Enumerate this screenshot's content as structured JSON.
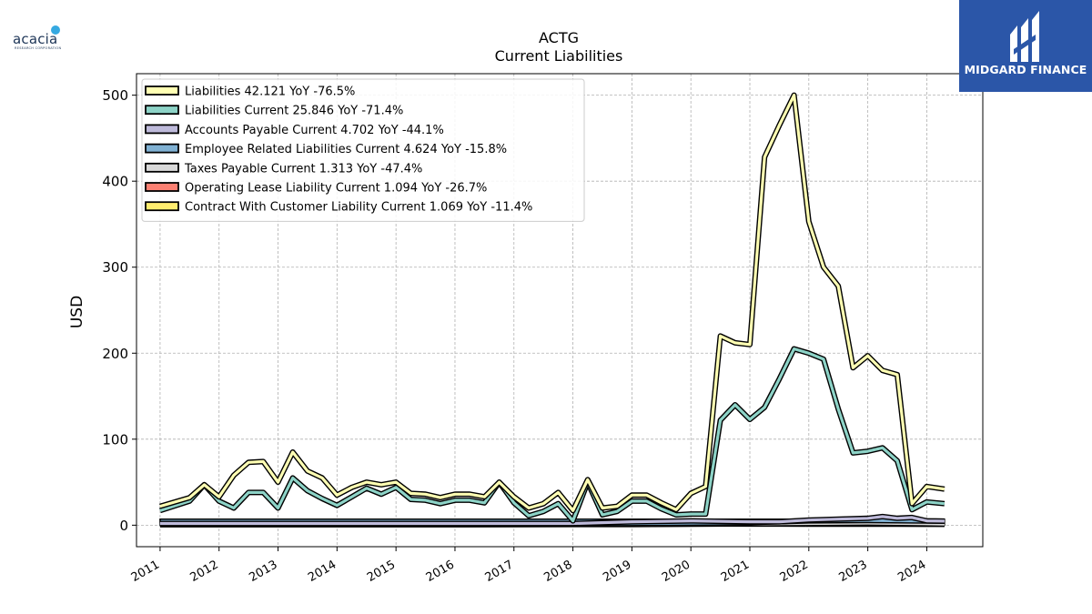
{
  "logos": {
    "left": {
      "text": "acacia",
      "subtext": "RESEARCH CORPORATION"
    },
    "right": {
      "text": "MIDGARD FINANCE"
    }
  },
  "chart_data": {
    "type": "line",
    "title": "ACTG",
    "subtitle": "Current  Liabilities",
    "ylabel": "USD",
    "xlabel": "",
    "xlim": [
      2010.6,
      2024.95
    ],
    "ylim": [
      -25,
      525
    ],
    "yticks": [
      0,
      100,
      200,
      300,
      400,
      500
    ],
    "xticks": [
      2011,
      2012,
      2013,
      2014,
      2015,
      2016,
      2017,
      2018,
      2019,
      2020,
      2021,
      2022,
      2023,
      2024
    ],
    "grid": true,
    "legend_position": "upper-left",
    "series": [
      {
        "name": "Liabilities  42.121 YoY -76.5%",
        "color": "#ffffb3",
        "points": [
          [
            2011.0,
            22
          ],
          [
            2011.5,
            32
          ],
          [
            2011.75,
            47
          ],
          [
            2012.0,
            33
          ],
          [
            2012.25,
            58
          ],
          [
            2012.5,
            73
          ],
          [
            2012.75,
            74
          ],
          [
            2013.0,
            50
          ],
          [
            2013.25,
            85
          ],
          [
            2013.5,
            63
          ],
          [
            2013.75,
            55
          ],
          [
            2014.0,
            35
          ],
          [
            2014.25,
            44
          ],
          [
            2014.5,
            50
          ],
          [
            2014.75,
            47
          ],
          [
            2015.0,
            50
          ],
          [
            2015.25,
            37
          ],
          [
            2015.5,
            36
          ],
          [
            2015.75,
            32
          ],
          [
            2016.0,
            36
          ],
          [
            2016.25,
            36
          ],
          [
            2016.5,
            33
          ],
          [
            2016.75,
            50
          ],
          [
            2017.0,
            33
          ],
          [
            2017.25,
            20
          ],
          [
            2017.5,
            25
          ],
          [
            2017.75,
            38
          ],
          [
            2018.0,
            17
          ],
          [
            2018.25,
            53
          ],
          [
            2018.5,
            20
          ],
          [
            2018.75,
            22
          ],
          [
            2019.0,
            35
          ],
          [
            2019.25,
            35
          ],
          [
            2019.5,
            26
          ],
          [
            2019.75,
            18
          ],
          [
            2020.0,
            37
          ],
          [
            2020.25,
            45
          ],
          [
            2020.5,
            220
          ],
          [
            2020.75,
            212
          ],
          [
            2021.0,
            210
          ],
          [
            2021.25,
            428
          ],
          [
            2021.5,
            465
          ],
          [
            2021.75,
            500
          ],
          [
            2022.0,
            353
          ],
          [
            2022.25,
            300
          ],
          [
            2022.5,
            278
          ],
          [
            2022.75,
            183
          ],
          [
            2023.0,
            197
          ],
          [
            2023.25,
            180
          ],
          [
            2023.5,
            175
          ],
          [
            2023.75,
            25
          ],
          [
            2024.0,
            45
          ],
          [
            2024.3,
            42
          ]
        ]
      },
      {
        "name": "Liabilities Current  25.846 YoY -71.4%",
        "color": "#8dd3c7",
        "points": [
          [
            2011.0,
            17
          ],
          [
            2011.5,
            28
          ],
          [
            2011.75,
            47
          ],
          [
            2012.0,
            28
          ],
          [
            2012.25,
            20
          ],
          [
            2012.5,
            38
          ],
          [
            2012.75,
            38
          ],
          [
            2013.0,
            20
          ],
          [
            2013.25,
            55
          ],
          [
            2013.5,
            40
          ],
          [
            2013.75,
            31
          ],
          [
            2014.0,
            23
          ],
          [
            2014.25,
            33
          ],
          [
            2014.5,
            43
          ],
          [
            2014.75,
            36
          ],
          [
            2015.0,
            44
          ],
          [
            2015.25,
            30
          ],
          [
            2015.5,
            29
          ],
          [
            2015.75,
            25
          ],
          [
            2016.0,
            29
          ],
          [
            2016.25,
            29
          ],
          [
            2016.5,
            26
          ],
          [
            2016.75,
            50
          ],
          [
            2017.0,
            26
          ],
          [
            2017.25,
            11
          ],
          [
            2017.5,
            16
          ],
          [
            2017.75,
            25
          ],
          [
            2018.0,
            5
          ],
          [
            2018.25,
            50
          ],
          [
            2018.5,
            12
          ],
          [
            2018.75,
            16
          ],
          [
            2019.0,
            28
          ],
          [
            2019.25,
            28
          ],
          [
            2019.5,
            19
          ],
          [
            2019.75,
            12
          ],
          [
            2020.0,
            13
          ],
          [
            2020.25,
            13
          ],
          [
            2020.5,
            122
          ],
          [
            2020.75,
            140
          ],
          [
            2021.0,
            123
          ],
          [
            2021.25,
            137
          ],
          [
            2021.5,
            170
          ],
          [
            2021.75,
            205
          ],
          [
            2022.0,
            200
          ],
          [
            2022.25,
            193
          ],
          [
            2022.5,
            135
          ],
          [
            2022.75,
            84
          ],
          [
            2023.0,
            86
          ],
          [
            2023.25,
            90
          ],
          [
            2023.5,
            75
          ],
          [
            2023.75,
            18
          ],
          [
            2024.0,
            27
          ],
          [
            2024.3,
            25
          ]
        ]
      },
      {
        "name": "Accounts Payable Current  4.702 YoY -44.1%",
        "color": "#bebada",
        "points": [
          [
            2011.0,
            2
          ],
          [
            2012.0,
            2
          ],
          [
            2013.0,
            2
          ],
          [
            2014.0,
            2
          ],
          [
            2015.0,
            2
          ],
          [
            2016.0,
            2
          ],
          [
            2017.0,
            2
          ],
          [
            2018.0,
            2
          ],
          [
            2019.0,
            4
          ],
          [
            2020.0,
            5
          ],
          [
            2021.0,
            4
          ],
          [
            2021.5,
            4
          ],
          [
            2022.0,
            6
          ],
          [
            2022.5,
            7
          ],
          [
            2023.0,
            8
          ],
          [
            2023.25,
            10
          ],
          [
            2023.5,
            8
          ],
          [
            2023.75,
            9
          ],
          [
            2024.0,
            5
          ],
          [
            2024.3,
            4.7
          ]
        ]
      },
      {
        "name": "Employee Related Liabilities Current  4.624 YoY -15.8%",
        "color": "#80b1d3",
        "points": [
          [
            2011.0,
            1
          ],
          [
            2013.0,
            1.5
          ],
          [
            2015.0,
            1
          ],
          [
            2017.0,
            1.5
          ],
          [
            2019.0,
            2
          ],
          [
            2021.0,
            3
          ],
          [
            2022.0,
            5
          ],
          [
            2023.0,
            5.5
          ],
          [
            2024.3,
            4.6
          ]
        ]
      },
      {
        "name": "Taxes Payable Current  1.313 YoY -47.4%",
        "color": "#d9d9d9",
        "points": [
          [
            2011.0,
            0.5
          ],
          [
            2015.0,
            0.5
          ],
          [
            2019.0,
            0.8
          ],
          [
            2022.0,
            2
          ],
          [
            2023.0,
            2.5
          ],
          [
            2024.3,
            1.3
          ]
        ]
      },
      {
        "name": "Operating Lease Liability Current  1.094 YoY -26.7%",
        "color": "#fb8072",
        "points": [
          [
            2018.95,
            1.2
          ],
          [
            2019.5,
            1.3
          ],
          [
            2020.0,
            1.4
          ],
          [
            2020.5,
            1.4
          ],
          [
            2021.0,
            1.3
          ],
          [
            2021.5,
            1.3
          ],
          [
            2021.95,
            1.2
          ]
        ]
      },
      {
        "name": "Contract With Customer Liability Current  1.069 YoY -11.4%",
        "color": "#ffed6f",
        "points": [
          [
            2021.95,
            1.1
          ],
          [
            2022.5,
            1.2
          ],
          [
            2023.0,
            1.2
          ],
          [
            2023.5,
            1.1
          ],
          [
            2024.3,
            1.07
          ]
        ]
      }
    ],
    "bands": [
      {
        "series": "Employee Related Liabilities Current  4.624 YoY -15.8%",
        "x_start": 2011.0,
        "x_end": 2018.95,
        "height": 7,
        "color": "#80b1d3"
      },
      {
        "series": "Operating Lease Liability Current  1.094 YoY -26.7%",
        "x_start": 2018.95,
        "x_end": 2021.95,
        "height": 7,
        "color": "#fb8072"
      },
      {
        "series": "Contract With Customer Liability Current  1.069 YoY -11.4%",
        "x_start": 2021.95,
        "x_end": 2024.3,
        "height": 7,
        "color": "#ffed6f"
      }
    ]
  }
}
